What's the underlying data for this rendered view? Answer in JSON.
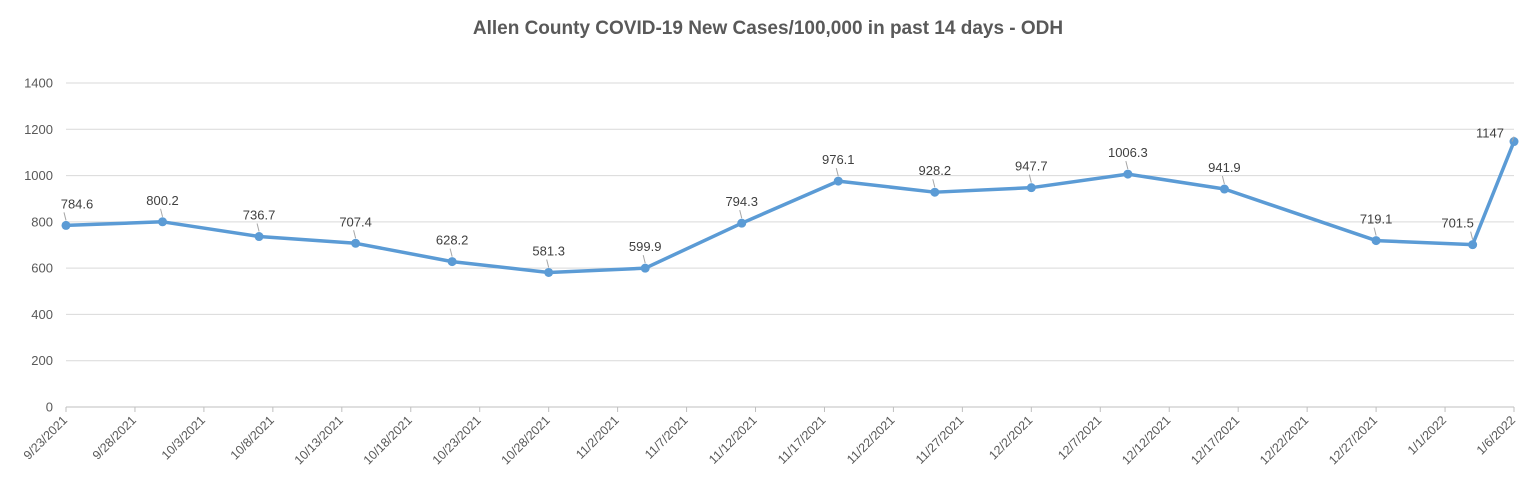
{
  "chart_data": {
    "type": "line",
    "title": "Allen County COVID-19 New Cases/100,000 in past 14 days - ODH",
    "xlabel": "",
    "ylabel": "",
    "ylim": [
      0,
      1400
    ],
    "y_ticks": [
      "0",
      "200",
      "400",
      "600",
      "800",
      "1000",
      "1200",
      "1400"
    ],
    "x_range": [
      "2021-09-23",
      "2022-01-06"
    ],
    "x_tick_labels": [
      "9/23/2021",
      "9/28/2021",
      "10/3/2021",
      "10/8/2021",
      "10/13/2021",
      "10/18/2021",
      "10/23/2021",
      "10/28/2021",
      "11/2/2021",
      "11/7/2021",
      "11/12/2021",
      "11/17/2021",
      "11/22/2021",
      "11/27/2021",
      "12/2/2021",
      "12/7/2021",
      "12/12/2021",
      "12/17/2021",
      "12/22/2021",
      "12/27/2021",
      "1/1/2022",
      "1/6/2022"
    ],
    "grid": true,
    "line_color": "#5b9bd5",
    "series": [
      {
        "points": [
          {
            "x": "2021-09-23",
            "y": 784.6,
            "label": "784.6"
          },
          {
            "x": "2021-09-30",
            "y": 800.2,
            "label": "800.2"
          },
          {
            "x": "2021-10-07",
            "y": 736.7,
            "label": "736.7"
          },
          {
            "x": "2021-10-14",
            "y": 707.4,
            "label": "707.4"
          },
          {
            "x": "2021-10-21",
            "y": 628.2,
            "label": "628.2"
          },
          {
            "x": "2021-10-28",
            "y": 581.3,
            "label": "581.3"
          },
          {
            "x": "2021-11-04",
            "y": 599.9,
            "label": "599.9"
          },
          {
            "x": "2021-11-11",
            "y": 794.3,
            "label": "794.3"
          },
          {
            "x": "2021-11-18",
            "y": 976.1,
            "label": "976.1"
          },
          {
            "x": "2021-11-25",
            "y": 928.2,
            "label": "928.2"
          },
          {
            "x": "2021-12-02",
            "y": 947.7,
            "label": "947.7"
          },
          {
            "x": "2021-12-09",
            "y": 1006.3,
            "label": "1006.3"
          },
          {
            "x": "2021-12-16",
            "y": 941.9,
            "label": "941.9"
          },
          {
            "x": "2021-12-27",
            "y": 719.1,
            "label": "719.1"
          },
          {
            "x": "2022-01-03",
            "y": 701.5,
            "label": "701.5"
          },
          {
            "x": "2022-01-06",
            "y": 1147,
            "label": "1147"
          }
        ]
      }
    ]
  }
}
